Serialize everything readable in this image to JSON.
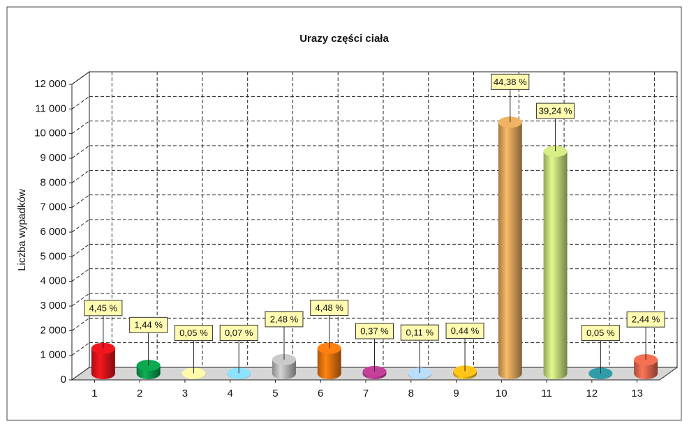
{
  "chart_data": {
    "type": "bar3d",
    "title": "Urazy części ciała",
    "ylabel": "Liczba wypadków",
    "categories": [
      "1",
      "2",
      "3",
      "4",
      "5",
      "6",
      "7",
      "8",
      "9",
      "10",
      "11",
      "12",
      "13"
    ],
    "values": [
      1024,
      331,
      12,
      16,
      570,
      1030,
      85,
      25,
      101,
      10207,
      9025,
      12,
      561
    ],
    "percent_labels": [
      "4,45 %",
      "1,44 %",
      "0,05 %",
      "0,07 %",
      "2,48 %",
      "4,48 %",
      "0,37 %",
      "0,11 %",
      "0,44 %",
      "44,38 %",
      "39,24 %",
      "0,05 %",
      "2,44 %"
    ],
    "colors": [
      "#d9141b",
      "#0a9a4a",
      "#ede39a",
      "#7fcdee",
      "#b8b8b8",
      "#e8730e",
      "#b23a8c",
      "#a9cbe6",
      "#f0b417",
      "#d9a35a",
      "#c4d97a",
      "#2a8f9a",
      "#e0664c"
    ],
    "ylim": [
      0,
      12000
    ],
    "yticks": [
      0,
      {
        "value": 1000,
        "label": "1 000"
      },
      {
        "value": 2000,
        "label": "2 000"
      },
      {
        "value": 3000,
        "label": "3 000"
      },
      {
        "value": 4000,
        "label": "4 000"
      },
      {
        "value": 5000,
        "label": "5 000"
      },
      {
        "value": 6000,
        "label": "6 000"
      },
      {
        "value": 7000,
        "label": "7 000"
      },
      {
        "value": 8000,
        "label": "8 000"
      },
      {
        "value": 9000,
        "label": "9 000"
      },
      {
        "value": 10000,
        "label": "10 000"
      },
      {
        "value": 11000,
        "label": "11 000"
      },
      {
        "value": 12000,
        "label": "12 000"
      }
    ],
    "grid": true
  }
}
